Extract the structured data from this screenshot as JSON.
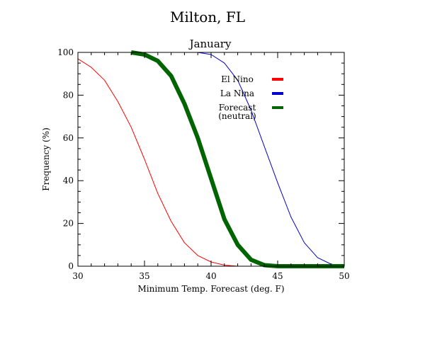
{
  "chart_data": {
    "type": "line",
    "title": "Milton, FL",
    "subtitle": "January",
    "xlabel": "Minimum Temp. Forecast (deg. F)",
    "ylabel": "Frequency (%)",
    "xlim": [
      30,
      50
    ],
    "ylim": [
      0,
      100
    ],
    "x_ticks": [
      30,
      35,
      40,
      45,
      50
    ],
    "y_ticks": [
      0,
      20,
      40,
      60,
      80,
      100
    ],
    "grid": false,
    "legend_position": "top-right",
    "series": [
      {
        "name": "El Nino",
        "color": "#ff0000",
        "weight": "thin",
        "x": [
          30,
          31,
          32,
          33,
          34,
          35,
          36,
          37,
          38,
          39,
          40,
          41,
          42,
          43,
          44,
          45,
          46,
          47,
          48,
          49,
          50
        ],
        "y": [
          97,
          93,
          87,
          77,
          65,
          50,
          34,
          21,
          11,
          5,
          2,
          0.5,
          0,
          0,
          0,
          0,
          0,
          0,
          0,
          0,
          0
        ]
      },
      {
        "name": "La Nina",
        "color": "#0000cc",
        "weight": "thin",
        "x": [
          39,
          40,
          41,
          42,
          43,
          44,
          45,
          46,
          47,
          48,
          49,
          50
        ],
        "y": [
          100,
          99,
          95,
          87,
          73,
          56,
          39,
          23,
          11,
          4,
          1,
          0
        ]
      },
      {
        "name": "Forecast\n(neutral)",
        "color": "#006400",
        "weight": "thick",
        "x": [
          34,
          35,
          36,
          37,
          38,
          39,
          40,
          41,
          42,
          43,
          44,
          45,
          46,
          47,
          48,
          49,
          50
        ],
        "y": [
          100,
          99,
          96,
          89,
          76,
          60,
          41,
          22,
          10,
          3,
          0.5,
          0,
          0,
          0,
          0,
          0,
          0
        ]
      }
    ]
  }
}
